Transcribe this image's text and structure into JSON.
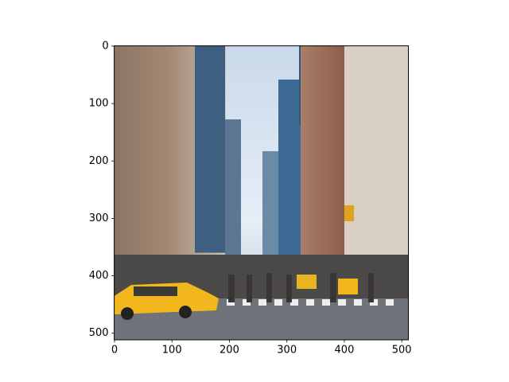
{
  "chart_data": {
    "type": "image",
    "xlim": [
      -0.5,
      511.5
    ],
    "ylim": [
      511.5,
      -0.5
    ],
    "xticks": [
      0,
      100,
      200,
      300,
      400,
      500
    ],
    "yticks": [
      0,
      100,
      200,
      300,
      400,
      500
    ]
  }
}
